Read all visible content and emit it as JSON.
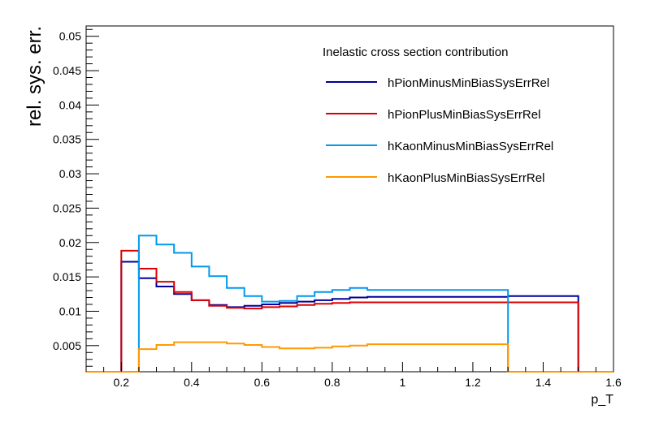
{
  "chart_data": {
    "type": "line",
    "subtype": "step-histogram",
    "ylabel": "rel. sys. err.",
    "xlabel": "p_T",
    "legend_title": "Inelastic cross section contribution",
    "legend_placement": "top-right",
    "grid": false,
    "xlim": [
      0.1,
      1.6
    ],
    "ylim": [
      0.0012,
      0.0515
    ],
    "x_ticks": [
      0.2,
      0.4,
      0.6,
      0.8,
      1,
      1.2,
      1.4,
      1.6
    ],
    "x_tick_labels": [
      "0.2",
      "0.4",
      "0.6",
      "0.8",
      "1",
      "1.2",
      "1.4",
      "1.6"
    ],
    "y_ticks": [
      0.005,
      0.01,
      0.015,
      0.02,
      0.025,
      0.03,
      0.035,
      0.04,
      0.045,
      0.05
    ],
    "y_tick_labels": [
      "0.005",
      "0.01",
      "0.015",
      "0.02",
      "0.025",
      "0.03",
      "0.035",
      "0.04",
      "0.045",
      "0.05"
    ],
    "bin_edges": [
      0.1,
      0.2,
      0.25,
      0.3,
      0.35,
      0.4,
      0.45,
      0.5,
      0.55,
      0.6,
      0.65,
      0.7,
      0.75,
      0.8,
      0.85,
      0.9,
      1.3,
      1.5,
      1.6
    ],
    "series": [
      {
        "name": "hPionMinusMinBiasSysErrRel",
        "color": "#000099",
        "values": [
          0,
          0.0172,
          0.0148,
          0.0136,
          0.0125,
          0.0116,
          0.0109,
          0.0106,
          0.0108,
          0.011,
          0.0112,
          0.0114,
          0.0116,
          0.0118,
          0.012,
          0.0121,
          0.0122,
          0
        ]
      },
      {
        "name": "hPionPlusMinBiasSysErrRel",
        "color": "#dd0000",
        "values": [
          0,
          0.0188,
          0.0162,
          0.0143,
          0.0128,
          0.0116,
          0.0108,
          0.0105,
          0.0104,
          0.0106,
          0.0107,
          0.0109,
          0.0111,
          0.0112,
          0.0113,
          0.0113,
          0.0113,
          0
        ]
      },
      {
        "name": "hKaonMinusMinBiasSysErrRel",
        "color": "#0099ee",
        "values": [
          0,
          0,
          0.021,
          0.0197,
          0.0185,
          0.0165,
          0.0151,
          0.0134,
          0.0122,
          0.0114,
          0.0115,
          0.0122,
          0.0128,
          0.0131,
          0.0134,
          0.0131,
          0,
          0
        ]
      },
      {
        "name": "hKaonPlusMinBiasSysErrRel",
        "color": "#ff9900",
        "values": [
          0,
          0,
          0.0045,
          0.0051,
          0.0055,
          0.0055,
          0.0055,
          0.0053,
          0.0051,
          0.0048,
          0.0046,
          0.0046,
          0.0047,
          0.0049,
          0.005,
          0.0052,
          0,
          0
        ]
      }
    ]
  }
}
